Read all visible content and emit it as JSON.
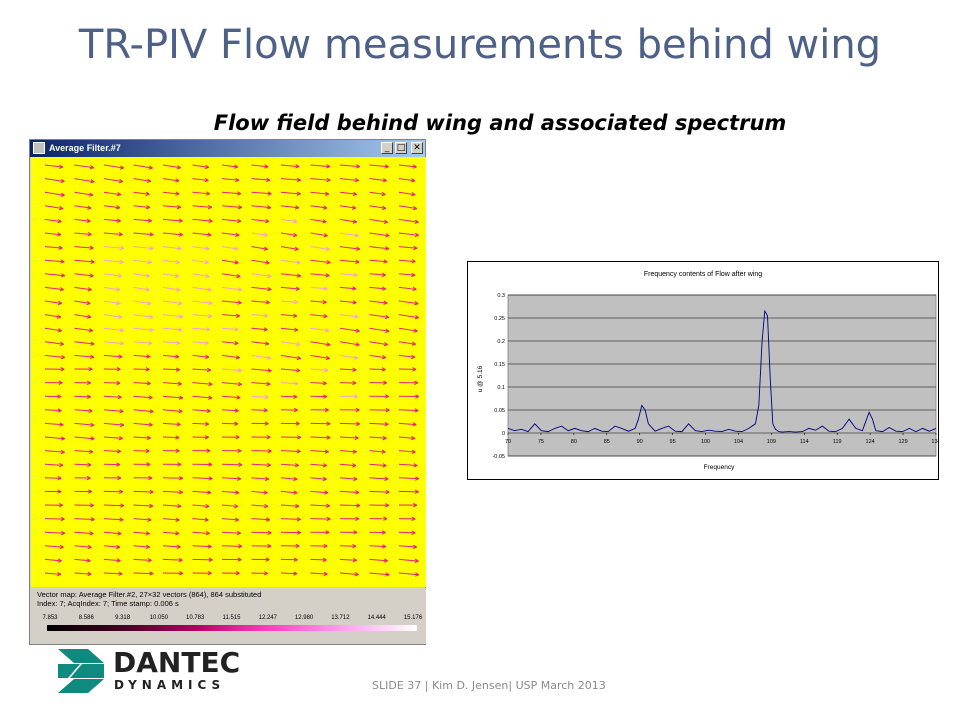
{
  "slide": {
    "title": "TR-PIV Flow measurements behind wing",
    "subtitle": "Flow field behind wing and associated spectrum",
    "footer": "SLIDE 37  |  Kim D. Jensen| USP March 2013"
  },
  "logo": {
    "line1": "DANTEC",
    "line2": "DYNAMICS",
    "colors": {
      "teal": "#0f8a7e"
    }
  },
  "window": {
    "title": "Average Filter.#7",
    "buttons": {
      "minimize": "_",
      "maximize": "□",
      "close": "✕"
    },
    "colors": {
      "field_background": "#ffff00",
      "vector_color": "#e8207a",
      "light_vector_color": "#ff9ad8"
    },
    "vector_grid": {
      "columns": 13,
      "rows": 31
    },
    "status": {
      "line1": "Vector map: Average Filter.#2, 27×32 vectors (864), 864 substituted",
      "line2": "Index: 7; AcqIndex: 7; Time stamp: 0.006 s"
    },
    "colorbar_labels": [
      "7.853",
      "8.586",
      "9.318",
      "10.050",
      "10.783",
      "11.515",
      "12.247",
      "12.980",
      "13.712",
      "14.444",
      "15.176"
    ]
  },
  "chart_data": {
    "type": "line",
    "title": "Frequency contents of Flow after wing",
    "xlabel": "Frequency",
    "ylabel": "u @ 5.16",
    "xlim": [
      70,
      134
    ],
    "ylim": [
      -0.05,
      0.3
    ],
    "yticks": [
      "-0.05",
      "0",
      "0.05",
      "0.1",
      "0.15",
      "0.2",
      "0.25",
      "0.3"
    ],
    "xticks": [
      "70",
      "75",
      "80",
      "85",
      "90",
      "95",
      "100",
      "104",
      "109",
      "114",
      "119",
      "124",
      "129",
      "134"
    ],
    "plot_background": "#c0c0c0",
    "line_color": "#000080",
    "x": [
      70,
      71,
      72,
      73,
      74,
      75,
      76,
      77,
      78,
      79,
      80,
      81,
      82,
      83,
      84,
      85,
      86,
      87,
      88,
      89,
      89.5,
      90,
      90.5,
      91,
      92,
      93,
      94,
      95,
      96,
      97,
      98,
      99,
      100,
      101,
      102,
      103,
      104,
      105,
      106,
      107,
      107.5,
      108,
      108.4,
      108.8,
      109.2,
      109.6,
      110,
      110.5,
      111,
      112,
      113,
      114,
      115,
      116,
      117,
      118,
      119,
      120,
      121,
      122,
      123,
      124,
      124.5,
      125,
      126,
      127,
      128,
      129,
      130,
      131,
      132,
      133,
      134
    ],
    "values": [
      0.01,
      0.005,
      0.008,
      0.003,
      0.02,
      0.005,
      0.003,
      0.01,
      0.015,
      0.005,
      0.01,
      0.005,
      0.003,
      0.01,
      0.004,
      0.003,
      0.015,
      0.01,
      0.004,
      0.01,
      0.03,
      0.06,
      0.05,
      0.02,
      0.004,
      0.01,
      0.015,
      0.004,
      0.003,
      0.02,
      0.005,
      0.003,
      0.006,
      0.004,
      0.003,
      0.008,
      0.004,
      0.003,
      0.01,
      0.02,
      0.06,
      0.2,
      0.265,
      0.255,
      0.12,
      0.02,
      0.008,
      0.003,
      0.002,
      0.003,
      0.002,
      0.003,
      0.01,
      0.006,
      0.015,
      0.004,
      0.003,
      0.01,
      0.03,
      0.01,
      0.005,
      0.045,
      0.03,
      0.005,
      0.003,
      0.012,
      0.004,
      0.003,
      0.01,
      0.003,
      0.01,
      0.004,
      0.01
    ]
  }
}
